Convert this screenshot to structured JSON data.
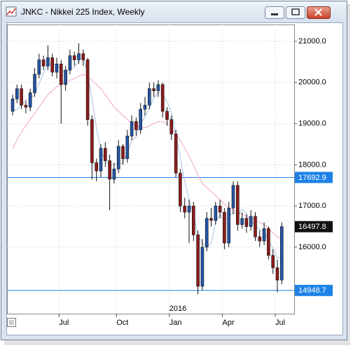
{
  "chart_data": {
    "type": "candlestick",
    "title": "JNKC - Nikkei 225 Index, Weekly",
    "categories": [
      null,
      null,
      null,
      null,
      null,
      null,
      null,
      null,
      null,
      null,
      null,
      "Jul",
      null,
      null,
      null,
      null,
      null,
      null,
      null,
      null,
      null,
      null,
      null,
      null,
      "Oct",
      null,
      null,
      null,
      null,
      null,
      null,
      null,
      null,
      null,
      null,
      null,
      "Jan",
      null,
      null,
      null,
      null,
      null,
      null,
      null,
      null,
      null,
      null,
      null,
      "Apr",
      null,
      null,
      null,
      null,
      null,
      null,
      null,
      null,
      null,
      null,
      null,
      "Jul",
      null
    ],
    "year_label": "2016",
    "open": [
      19300,
      19600,
      19850,
      19450,
      19400,
      19750,
      20200,
      20550,
      20400,
      20600,
      20250,
      20450,
      19950,
      20300,
      20650,
      20550,
      20700,
      20550,
      19100,
      18050,
      17850,
      18400,
      18100,
      17650,
      17900,
      18450,
      18150,
      18700,
      19050,
      18850,
      19350,
      19450,
      19850,
      19800,
      19950,
      19300,
      19100,
      18750,
      17800,
      17000,
      16850,
      17000,
      16300,
      15050,
      16000,
      16700,
      16650,
      17000,
      16850,
      16100,
      16950,
      17500,
      16550,
      16700,
      16500,
      16750,
      16250,
      16150,
      16450,
      15800,
      15500,
      15200
    ],
    "high": [
      19700,
      19950,
      19950,
      19550,
      19850,
      20350,
      20700,
      20650,
      20900,
      20700,
      20600,
      20550,
      20400,
      20800,
      20750,
      20950,
      20800,
      20600,
      19200,
      18150,
      18500,
      18550,
      18250,
      18050,
      18600,
      18500,
      18850,
      19200,
      19150,
      19500,
      19650,
      20000,
      20000,
      20050,
      20000,
      19400,
      19200,
      18850,
      17900,
      17200,
      17150,
      17100,
      16400,
      16200,
      16850,
      16950,
      17100,
      17150,
      16950,
      17100,
      17600,
      17600,
      16850,
      16800,
      16900,
      16850,
      16400,
      16600,
      16500,
      15950,
      15700,
      16600
    ],
    "low": [
      19200,
      19500,
      19350,
      19250,
      19300,
      19650,
      20100,
      20300,
      20300,
      20150,
      20100,
      19000,
      19800,
      20200,
      20400,
      20450,
      20400,
      18950,
      17650,
      17600,
      17700,
      17950,
      16900,
      17550,
      17800,
      18000,
      18050,
      18600,
      18700,
      18750,
      19200,
      19350,
      19650,
      19650,
      19150,
      18950,
      18600,
      17700,
      16850,
      16700,
      16100,
      16150,
      14860,
      14950,
      15900,
      16500,
      16550,
      16700,
      15950,
      16000,
      16800,
      16400,
      16450,
      16350,
      16400,
      16150,
      16000,
      16050,
      15700,
      15350,
      14900,
      15100
    ],
    "close": [
      19600,
      19850,
      19450,
      19400,
      19750,
      20200,
      20550,
      20400,
      20600,
      20250,
      20450,
      19950,
      20300,
      20650,
      20550,
      20700,
      20550,
      19100,
      18050,
      17850,
      18400,
      18100,
      17650,
      17900,
      18450,
      18150,
      18700,
      19050,
      18850,
      19350,
      19450,
      19850,
      19800,
      19950,
      19300,
      19100,
      18750,
      17800,
      17000,
      16850,
      17000,
      16300,
      15050,
      16000,
      16700,
      16650,
      17000,
      16850,
      16100,
      16950,
      17500,
      16550,
      16700,
      16500,
      16750,
      16250,
      16150,
      16450,
      15800,
      15500,
      15200,
      16497.8
    ],
    "up_color": "#2456a8",
    "down_color": "#8e1b1b",
    "series": [
      {
        "color": "#b4cbe6",
        "values": [
          19300,
          19350,
          19450,
          19575,
          19613,
          19700,
          19975,
          20225,
          20438,
          20450,
          20425,
          20313,
          20238,
          20338,
          20363,
          20550,
          20613,
          20225,
          19600,
          18888,
          18350,
          18100,
          18000,
          18013,
          18025,
          18038,
          18300,
          18588,
          18688,
          18988,
          19175,
          19375,
          19613,
          19763,
          19725,
          19538,
          19275,
          18738,
          18163,
          17600,
          17163,
          16788,
          16300,
          16088,
          16013,
          16100,
          16588,
          16800,
          16650,
          16725,
          16850,
          16775,
          16925,
          16813,
          16625,
          16550,
          16413,
          16400,
          16163,
          15975,
          15738,
          15750
        ]
      },
      {
        "color": "#f2b3cd",
        "values": [
          18400,
          18600,
          18800,
          18950,
          19100,
          19250,
          19400,
          19550,
          19700,
          19800,
          19900,
          19950,
          20000,
          20050,
          20100,
          20150,
          20200,
          20150,
          20050,
          19950,
          19850,
          19700,
          19550,
          19400,
          19300,
          19200,
          19100,
          19000,
          18950,
          18900,
          18900,
          18950,
          19000,
          19050,
          19050,
          19000,
          18900,
          18750,
          18600,
          18400,
          18200,
          18000,
          17750,
          17550,
          17450,
          17350,
          17250,
          17150,
          17050,
          16950,
          16900,
          16850,
          16800,
          16750,
          16700,
          16650,
          16600,
          16550,
          16450,
          16350,
          16250,
          16200
        ]
      }
    ],
    "hlines": [
      {
        "value": 17692.9,
        "color": "#1e82e6"
      },
      {
        "value": 14948.7,
        "color": "#1e82e6"
      }
    ],
    "last_price": 16497.8,
    "last_price_color": "#111111",
    "ylim": [
      14384,
      21408
    ],
    "yticks": [
      {
        "value": 16000,
        "label": "16000.0"
      },
      {
        "value": 17000,
        "label": "17000.0"
      },
      {
        "value": 18000,
        "label": "18000.0"
      },
      {
        "value": 19000,
        "label": "19000.0"
      },
      {
        "value": 20000,
        "label": "20000.0"
      },
      {
        "value": 21000,
        "label": "21000.0"
      }
    ],
    "grid": true
  }
}
